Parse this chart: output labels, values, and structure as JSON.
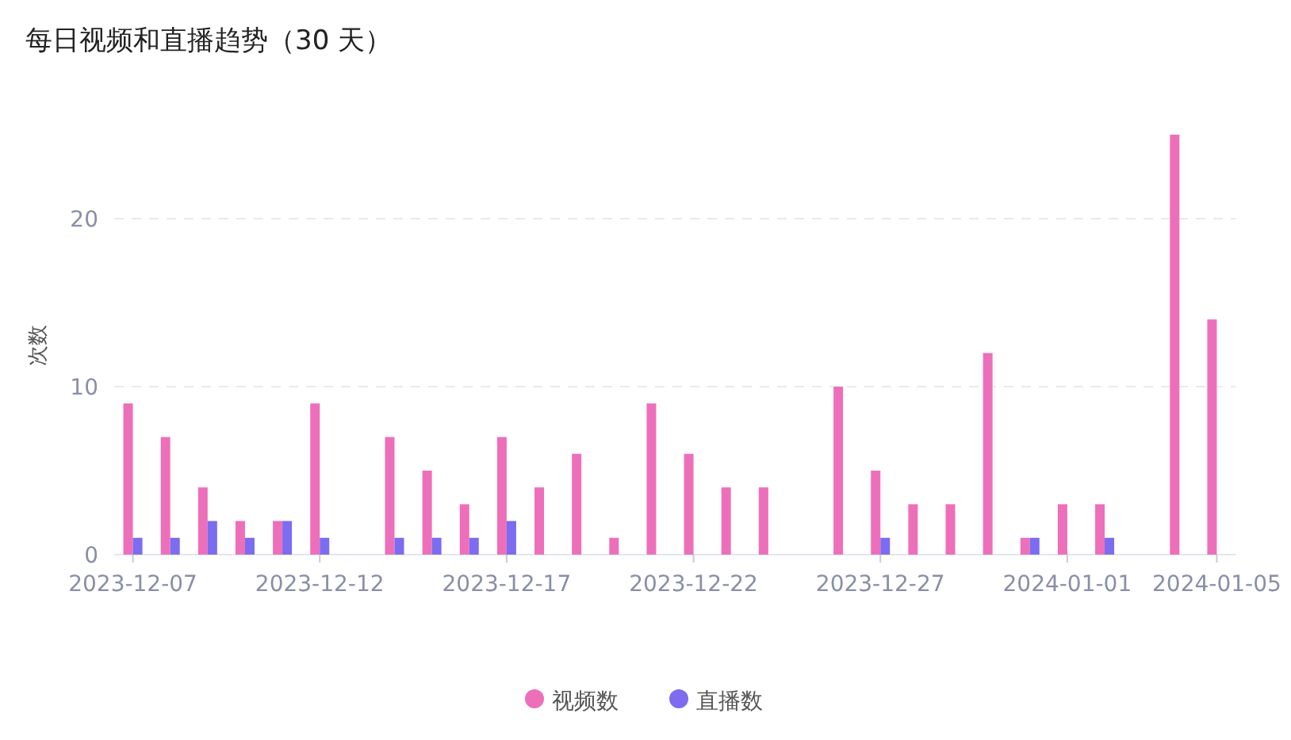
{
  "chart_data": {
    "type": "bar",
    "title": "每日视频和直播趋势（30 天）",
    "ylabel": "次数",
    "categories": [
      "2023-12-07",
      null,
      null,
      null,
      null,
      "2023-12-12",
      null,
      null,
      null,
      null,
      "2023-12-17",
      null,
      null,
      null,
      null,
      "2023-12-22",
      null,
      null,
      null,
      null,
      "2023-12-27",
      null,
      null,
      null,
      null,
      "2024-01-01",
      null,
      null,
      null,
      "2024-01-05"
    ],
    "series": [
      {
        "name": "视频数",
        "color": "#ee6fb9",
        "values": [
          9,
          7,
          4,
          2,
          2,
          9,
          0,
          7,
          5,
          3,
          7,
          4,
          6,
          1,
          9,
          6,
          4,
          4,
          0,
          10,
          5,
          3,
          3,
          12,
          1,
          3,
          3,
          0,
          25,
          14
        ]
      },
      {
        "name": "直播数",
        "color": "#7b6cf0",
        "values": [
          1,
          1,
          2,
          1,
          2,
          1,
          0,
          1,
          1,
          1,
          2,
          0,
          0,
          0,
          0,
          0,
          0,
          0,
          0,
          0,
          1,
          0,
          0,
          0,
          1,
          0,
          1,
          0,
          0,
          0
        ]
      }
    ],
    "ylim": [
      0,
      25
    ],
    "yticks": [
      0,
      10,
      20
    ],
    "grid": "y",
    "legend": "bottom",
    "marker": "circle"
  }
}
